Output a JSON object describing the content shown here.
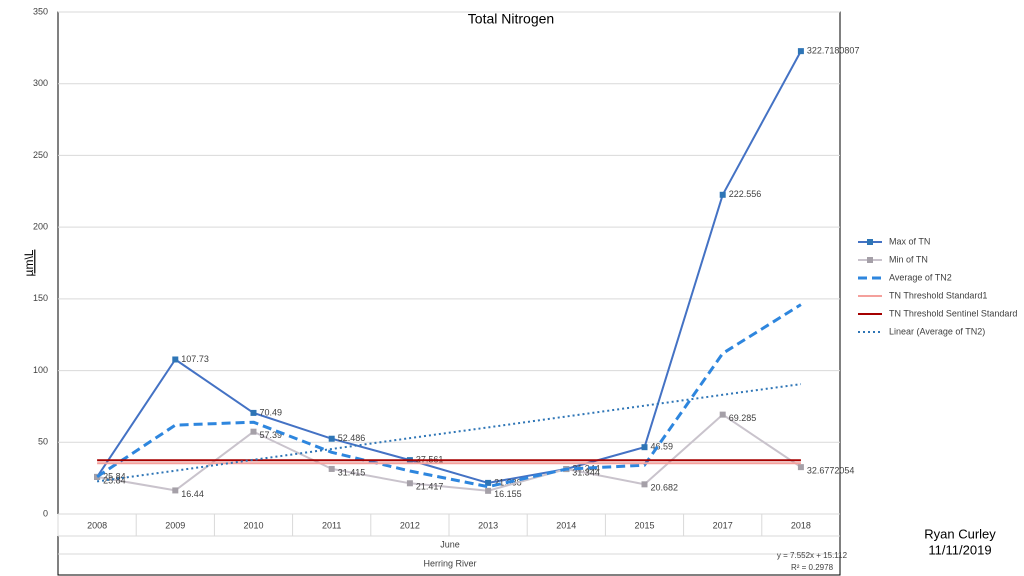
{
  "chart_data": {
    "type": "line",
    "title": "Total Nitrogen",
    "y_label": "µm\\L",
    "x_group_labels": [
      "June",
      "Herring River"
    ],
    "categories": [
      "2008",
      "2009",
      "2010",
      "2011",
      "2012",
      "2013",
      "2014",
      "2015",
      "2017",
      "2018"
    ],
    "series": [
      {
        "name": "Max of TN",
        "color": "#4472c4",
        "line": "solid",
        "width": 2,
        "marker": "square",
        "marker_color": "#2e75b6",
        "labels": true,
        "values": [
          25.84,
          107.73,
          70.49,
          52.486,
          37.561,
          21.688,
          31.344,
          46.59,
          222.556,
          322.7180807
        ]
      },
      {
        "name": "Min of TN",
        "color": "#c9c3cc",
        "line": "solid",
        "width": 2,
        "marker": "square",
        "marker_color": "#a5a0a8",
        "labels": true,
        "values": [
          25.84,
          16.44,
          57.39,
          31.415,
          21.417,
          16.155,
          31.344,
          20.682,
          69.285,
          32.6772054
        ]
      },
      {
        "name": "Average of TN2",
        "color": "#2e86de",
        "line": "dashed",
        "width": 3,
        "marker": "none",
        "labels": false,
        "values": [
          26,
          62,
          64,
          43,
          30,
          19,
          31.3,
          34,
          112,
          146
        ]
      },
      {
        "name": "TN Threshold Standard1",
        "color": "#f4a09c",
        "line": "solid",
        "width": 2,
        "marker": "none",
        "labels": false,
        "values": [
          35.4,
          35.4,
          35.4,
          35.4,
          35.4,
          35.4,
          35.4,
          35.4,
          35.4,
          35.4
        ]
      },
      {
        "name": "TN Threshold Sentinel Standard",
        "color": "#a50000",
        "line": "solid",
        "width": 2,
        "marker": "none",
        "labels": false,
        "values": [
          37.5,
          37.5,
          37.5,
          37.5,
          37.5,
          37.5,
          37.5,
          37.5,
          37.5,
          37.5
        ]
      },
      {
        "name": "Linear (Average of TN2)",
        "color": "#2e75b6",
        "line": "dotted",
        "width": 2,
        "marker": "none",
        "labels": false,
        "values": [
          22.7,
          30.2,
          37.8,
          45.3,
          52.9,
          60.4,
          68.0,
          75.5,
          83.1,
          90.6
        ]
      }
    ],
    "trendline_equation": "y = 7.552x + 15.112",
    "trendline_r2": "R² = 0.2978",
    "ylim": [
      0,
      350
    ],
    "yticks": [
      0,
      50,
      100,
      150,
      200,
      250,
      300,
      350
    ],
    "grid": true,
    "legend": "right",
    "author": "Ryan Curley",
    "date": "11/11/2019"
  }
}
